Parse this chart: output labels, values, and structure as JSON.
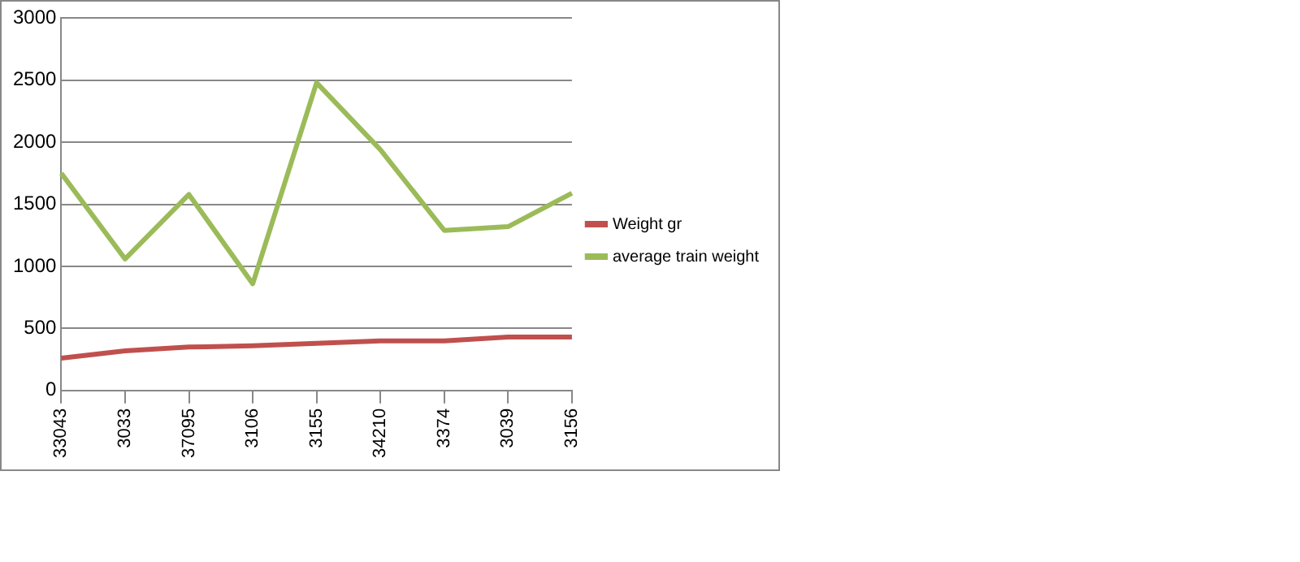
{
  "chart_data": {
    "type": "line",
    "categories": [
      "33043",
      "3033",
      "37095",
      "3106",
      "3155",
      "34210",
      "3374",
      "3039",
      "3156"
    ],
    "series": [
      {
        "name": "Weight gr",
        "color": "#c0504d",
        "values": [
          260,
          320,
          350,
          360,
          380,
          400,
          400,
          430,
          430
        ]
      },
      {
        "name": "average train weight",
        "color": "#9bbb59",
        "values": [
          1750,
          1060,
          1580,
          860,
          2480,
          1940,
          1290,
          1320,
          1590
        ]
      }
    ],
    "ylim": [
      0,
      3000
    ],
    "yticks": [
      0,
      500,
      1000,
      1500,
      2000,
      2500,
      3000
    ],
    "grid": "y",
    "legend": "right",
    "marker": "none",
    "line_style": "solid"
  }
}
